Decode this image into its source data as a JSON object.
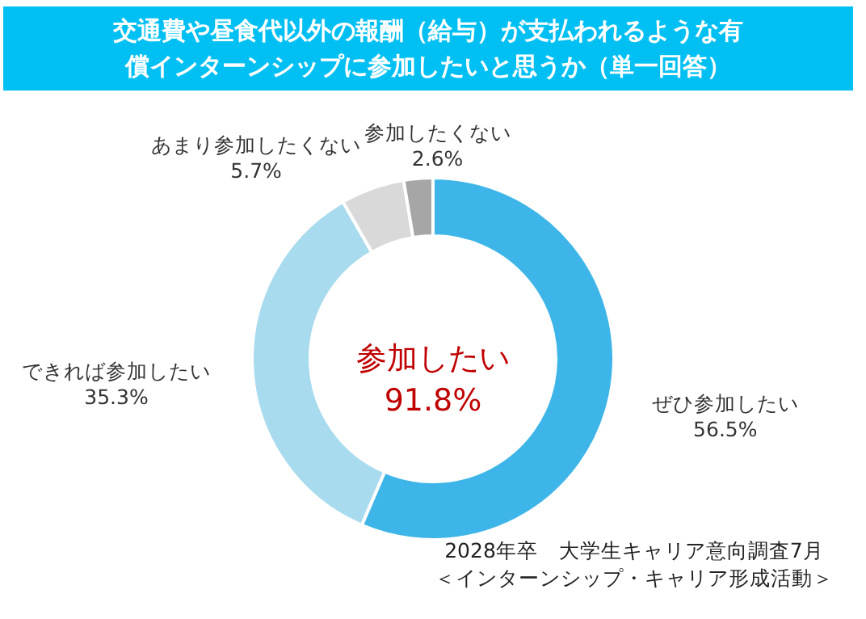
{
  "chart_data": {
    "type": "donut",
    "title": "交通費や昼食代以外の報酬（給与）が支払われるような有償インターンシップに参加したいと思うか（単一回答）",
    "categories": [
      "ぜひ参加したい",
      "できれば参加したい",
      "あまり参加したくない",
      "参加したくない"
    ],
    "values": [
      56.5,
      35.3,
      5.7,
      2.6
    ],
    "value_labels": [
      "56.5%",
      "35.3%",
      "5.7%",
      "2.6%"
    ],
    "colors": [
      "#3eb5e8",
      "#a9dbef",
      "#d9d9d9",
      "#a6a6a6"
    ],
    "annotations": [
      "参加したい",
      "91.8%",
      "2028年卒　大学生キャリア意向調査7月",
      "＜インターンシップ・キャリア形成活動＞"
    ]
  }
}
